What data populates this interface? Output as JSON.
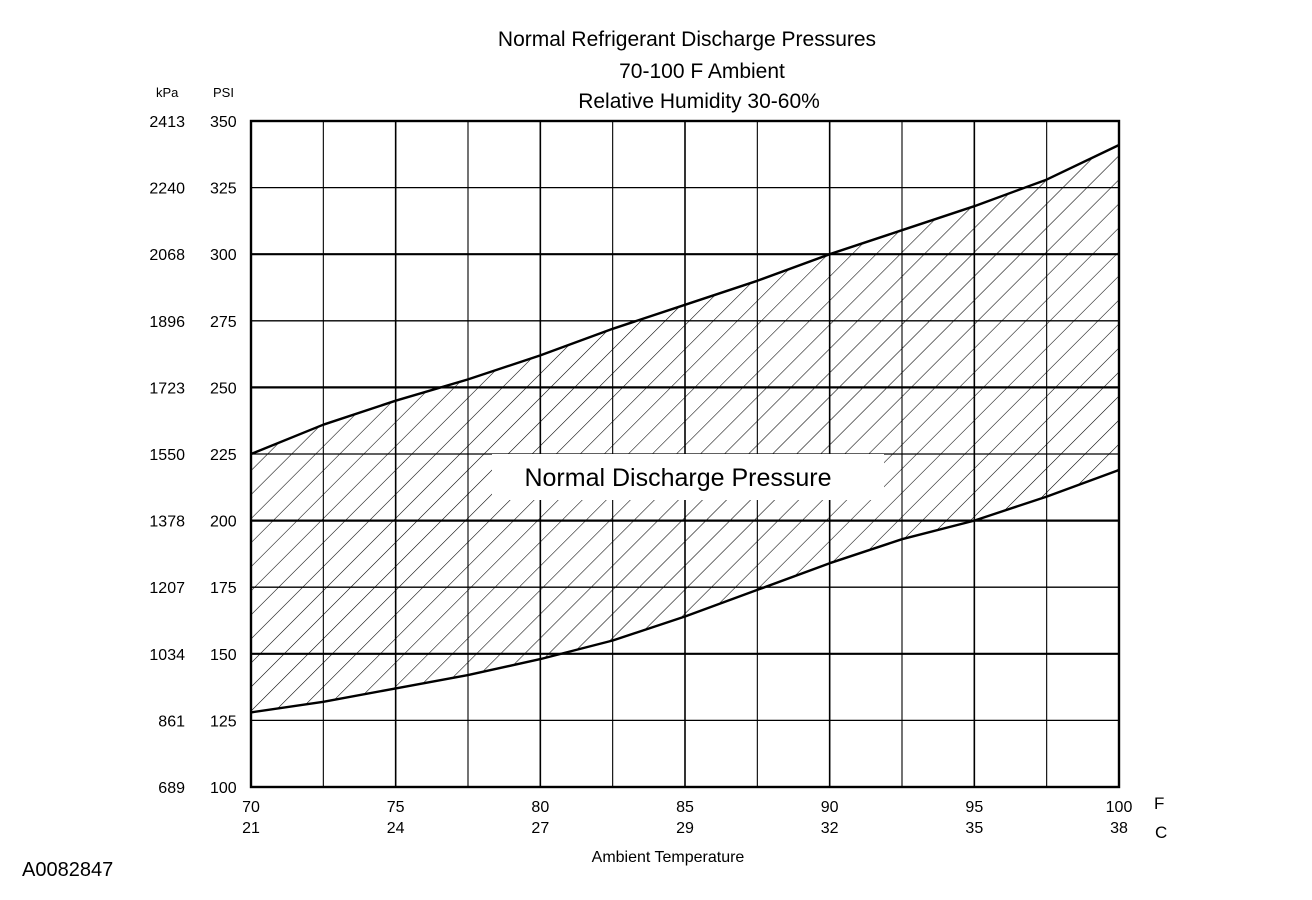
{
  "chart_data": {
    "type": "area",
    "title": "Normal  Refrigerant  Discharge  Pressures",
    "subtitle_lines": [
      "70-100 F Ambient",
      "Relative Humidity 30-60%"
    ],
    "xlabel": "Ambient Temperature",
    "x_unit_primary": "F",
    "x_unit_secondary": "C",
    "y_unit_left": "kPa",
    "y_unit_right": "PSI",
    "xlim": [
      70,
      100
    ],
    "ylim": [
      100,
      350
    ],
    "x_ticks": [
      {
        "f": 70,
        "f_label": "70",
        "c_label": "21"
      },
      {
        "f": 75,
        "f_label": "75",
        "c_label": "24"
      },
      {
        "f": 80,
        "f_label": "80",
        "c_label": "27"
      },
      {
        "f": 85,
        "f_label": "85",
        "c_label": "29"
      },
      {
        "f": 90,
        "f_label": "90",
        "c_label": "32"
      },
      {
        "f": 95,
        "f_label": "95",
        "c_label": "35"
      },
      {
        "f": 100,
        "f_label": "100",
        "c_label": "38"
      }
    ],
    "x_minor_gridlines": [
      72.5,
      77.5,
      82.5,
      87.5,
      92.5,
      97.5
    ],
    "y_ticks": [
      {
        "psi": 100,
        "psi_label": "100",
        "kpa_label": "689"
      },
      {
        "psi": 125,
        "psi_label": "125",
        "kpa_label": "861"
      },
      {
        "psi": 150,
        "psi_label": "150",
        "kpa_label": "1034"
      },
      {
        "psi": 175,
        "psi_label": "175",
        "kpa_label": "1207"
      },
      {
        "psi": 200,
        "psi_label": "200",
        "kpa_label": "1378"
      },
      {
        "psi": 225,
        "psi_label": "225",
        "kpa_label": "1550"
      },
      {
        "psi": 250,
        "psi_label": "250",
        "kpa_label": "1723"
      },
      {
        "psi": 275,
        "psi_label": "275",
        "kpa_label": "1896"
      },
      {
        "psi": 300,
        "psi_label": "300",
        "kpa_label": "2068"
      },
      {
        "psi": 325,
        "psi_label": "325",
        "kpa_label": "2240"
      },
      {
        "psi": 350,
        "psi_label": "350",
        "kpa_label": "2413"
      }
    ],
    "grid": true,
    "series": [
      {
        "role": "upper",
        "x": [
          70,
          72.5,
          75,
          77.5,
          80,
          82.5,
          85,
          87.5,
          90,
          92.5,
          95,
          97.5,
          100
        ],
        "y": [
          225,
          236,
          245,
          253,
          262,
          272,
          281,
          290,
          300,
          309,
          318,
          328,
          341
        ]
      },
      {
        "role": "lower",
        "x": [
          70,
          72.5,
          75,
          77.5,
          80,
          82.5,
          85,
          87.5,
          90,
          92.5,
          95,
          97.5,
          100
        ],
        "y": [
          128,
          132,
          137,
          142,
          148,
          155,
          164,
          174,
          184,
          193,
          200,
          209,
          219
        ]
      }
    ],
    "region_label": "Normal Discharge Pressure",
    "fill_pattern": "diagonal-hatch"
  },
  "figure_id": "A0082847"
}
